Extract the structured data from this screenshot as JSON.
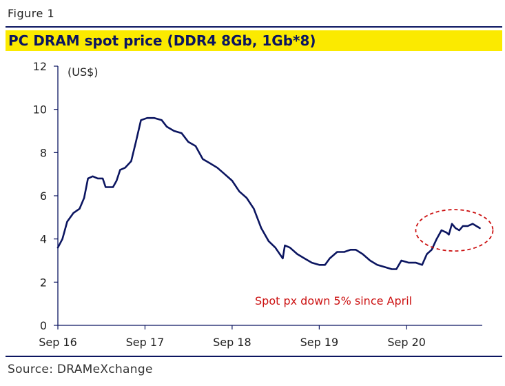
{
  "figure_label": "Figure 1",
  "title": "PC DRAM spot price (DDR4 8Gb, 1Gb*8)",
  "source": "Source: DRAMeXchange",
  "colors": {
    "line": "#0b1560",
    "title_bg": "#fbea00",
    "annotation": "#cc1111"
  },
  "chart_data": {
    "type": "line",
    "title": "PC DRAM spot price (DDR4 8Gb, 1Gb*8)",
    "ylabel": "(US$)",
    "xlabel": "",
    "ylim": [
      0,
      12
    ],
    "yticks": [
      0,
      2,
      4,
      6,
      8,
      10,
      12
    ],
    "xlim": [
      "2016-09-01",
      "2021-07-15"
    ],
    "xticks": [
      {
        "date": "2016-09-01",
        "label": "Sep 16"
      },
      {
        "date": "2017-09-01",
        "label": "Sep 17"
      },
      {
        "date": "2018-09-01",
        "label": "Sep 18"
      },
      {
        "date": "2019-09-01",
        "label": "Sep 19"
      },
      {
        "date": "2020-09-01",
        "label": "Sep 20"
      }
    ],
    "grid": false,
    "series": [
      {
        "points": [
          [
            "2016-09-01",
            3.6
          ],
          [
            "2016-09-20",
            4.0
          ],
          [
            "2016-10-10",
            4.8
          ],
          [
            "2016-11-05",
            5.2
          ],
          [
            "2016-12-01",
            5.4
          ],
          [
            "2016-12-20",
            5.9
          ],
          [
            "2017-01-05",
            6.8
          ],
          [
            "2017-01-25",
            6.9
          ],
          [
            "2017-02-15",
            6.8
          ],
          [
            "2017-03-08",
            6.8
          ],
          [
            "2017-03-20",
            6.4
          ],
          [
            "2017-04-20",
            6.4
          ],
          [
            "2017-05-05",
            6.7
          ],
          [
            "2017-05-20",
            7.2
          ],
          [
            "2017-06-10",
            7.3
          ],
          [
            "2017-07-05",
            7.6
          ],
          [
            "2017-07-25",
            8.5
          ],
          [
            "2017-08-15",
            9.5
          ],
          [
            "2017-09-10",
            9.6
          ],
          [
            "2017-10-10",
            9.6
          ],
          [
            "2017-11-10",
            9.5
          ],
          [
            "2017-12-01",
            9.2
          ],
          [
            "2018-01-01",
            9.0
          ],
          [
            "2018-02-01",
            8.9
          ],
          [
            "2018-03-01",
            8.5
          ],
          [
            "2018-04-01",
            8.3
          ],
          [
            "2018-05-01",
            7.7
          ],
          [
            "2018-06-01",
            7.5
          ],
          [
            "2018-07-01",
            7.3
          ],
          [
            "2018-08-01",
            7.0
          ],
          [
            "2018-09-01",
            6.7
          ],
          [
            "2018-10-01",
            6.2
          ],
          [
            "2018-11-01",
            5.9
          ],
          [
            "2018-12-01",
            5.4
          ],
          [
            "2019-01-01",
            4.5
          ],
          [
            "2019-02-01",
            3.9
          ],
          [
            "2019-03-01",
            3.6
          ],
          [
            "2019-04-01",
            3.1
          ],
          [
            "2019-04-10",
            3.7
          ],
          [
            "2019-05-01",
            3.6
          ],
          [
            "2019-06-01",
            3.3
          ],
          [
            "2019-07-01",
            3.1
          ],
          [
            "2019-08-01",
            2.9
          ],
          [
            "2019-09-01",
            2.8
          ],
          [
            "2019-09-25",
            2.8
          ],
          [
            "2019-10-15",
            3.1
          ],
          [
            "2019-11-15",
            3.4
          ],
          [
            "2019-12-15",
            3.4
          ],
          [
            "2020-01-10",
            3.5
          ],
          [
            "2020-02-01",
            3.5
          ],
          [
            "2020-03-01",
            3.3
          ],
          [
            "2020-04-01",
            3.0
          ],
          [
            "2020-05-01",
            2.8
          ],
          [
            "2020-06-01",
            2.7
          ],
          [
            "2020-07-01",
            2.6
          ],
          [
            "2020-07-20",
            2.6
          ],
          [
            "2020-08-10",
            3.0
          ],
          [
            "2020-09-10",
            2.9
          ],
          [
            "2020-10-10",
            2.9
          ],
          [
            "2020-11-05",
            2.8
          ],
          [
            "2020-11-25",
            3.3
          ],
          [
            "2020-12-15",
            3.5
          ],
          [
            "2021-01-05",
            4.0
          ],
          [
            "2021-01-25",
            4.4
          ],
          [
            "2021-02-15",
            4.3
          ],
          [
            "2021-02-25",
            4.2
          ],
          [
            "2021-03-10",
            4.7
          ],
          [
            "2021-03-25",
            4.5
          ],
          [
            "2021-04-10",
            4.4
          ],
          [
            "2021-04-25",
            4.6
          ],
          [
            "2021-05-15",
            4.6
          ],
          [
            "2021-06-05",
            4.7
          ],
          [
            "2021-06-20",
            4.6
          ],
          [
            "2021-07-05",
            4.5
          ]
        ]
      }
    ],
    "annotations": [
      {
        "text": "Spot px down 5% since April"
      }
    ]
  }
}
